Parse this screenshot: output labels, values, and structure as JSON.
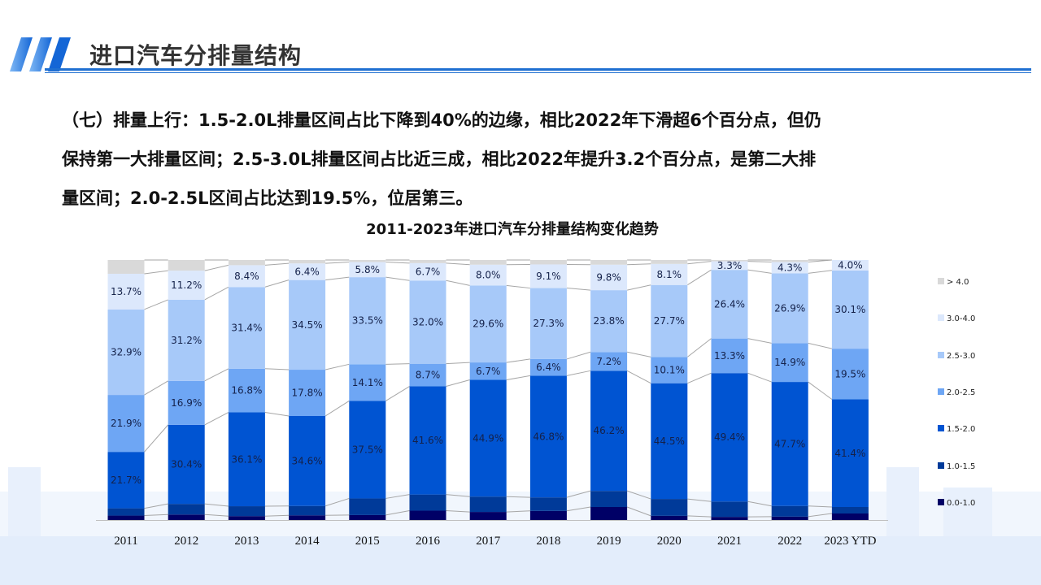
{
  "header": {
    "title": "进口汽车分排量结构"
  },
  "paragraph": {
    "lines": [
      "（七）排量上行：1.5-2.0L排量区间占比下降到40%的边缘，相比2022年下滑超6个百分点，但仍",
      "保持第一大排量区间；2.5-3.0L排量区间占比近三成，相比2022年提升3.2个百分点，是第二大排",
      "量区间；2.0-2.5L区间占比达到19.5%，位居第三。"
    ]
  },
  "colors": {
    "accent": "#1f6fd1",
    "connector": "#a6a6a6"
  },
  "chart_data": {
    "type": "bar",
    "stacked": true,
    "title": "2011-2023年进口汽车分排量结构变化趋势",
    "xlabel": "",
    "ylabel": "",
    "ylim": [
      0,
      100
    ],
    "legend_position": "right",
    "categories": [
      "2011",
      "2012",
      "2013",
      "2014",
      "2015",
      "2016",
      "2017",
      "2018",
      "2019",
      "2020",
      "2021",
      "2022",
      "2023 YTD"
    ],
    "series": [
      {
        "name": "0.0-1.0",
        "color": "#000066",
        "labeled": false,
        "values": [
          1.7,
          2.1,
          1.5,
          1.8,
          1.9,
          3.6,
          3.1,
          3.5,
          5.0,
          1.6,
          1.2,
          1.3,
          2.5
        ]
      },
      {
        "name": "1.0-1.5",
        "color": "#003a99",
        "labeled": false,
        "values": [
          2.8,
          4.1,
          3.8,
          3.6,
          6.4,
          6.2,
          5.9,
          5.2,
          6.2,
          6.5,
          5.9,
          4.1,
          2.5
        ]
      },
      {
        "name": "1.5-2.0",
        "color": "#0054d2",
        "labeled": true,
        "values": [
          21.7,
          30.4,
          36.1,
          34.6,
          37.5,
          41.6,
          44.9,
          46.8,
          46.2,
          44.5,
          49.4,
          47.7,
          41.4
        ]
      },
      {
        "name": "2.0-2.5",
        "color": "#6ea6f4",
        "labeled": true,
        "values": [
          21.9,
          16.9,
          16.8,
          17.8,
          14.1,
          8.7,
          6.7,
          6.4,
          7.2,
          10.1,
          13.3,
          14.9,
          19.5
        ]
      },
      {
        "name": "2.5-3.0",
        "color": "#a7c9f9",
        "labeled": true,
        "values": [
          32.9,
          31.2,
          31.4,
          34.5,
          33.5,
          32.0,
          29.6,
          27.3,
          23.8,
          27.7,
          26.4,
          26.9,
          30.1
        ]
      },
      {
        "name": "3.0-4.0",
        "color": "#dce8fc",
        "labeled": true,
        "values": [
          13.7,
          11.2,
          8.4,
          6.4,
          5.8,
          6.7,
          8.0,
          9.1,
          9.8,
          8.1,
          3.3,
          4.3,
          4.0
        ]
      },
      {
        "name": "> 4.0",
        "color": "#d9d9d9",
        "labeled": false,
        "values": [
          5.3,
          4.1,
          2.0,
          1.3,
          0.8,
          1.2,
          1.8,
          1.7,
          1.8,
          1.5,
          0.5,
          0.8,
          0.0
        ]
      }
    ]
  }
}
